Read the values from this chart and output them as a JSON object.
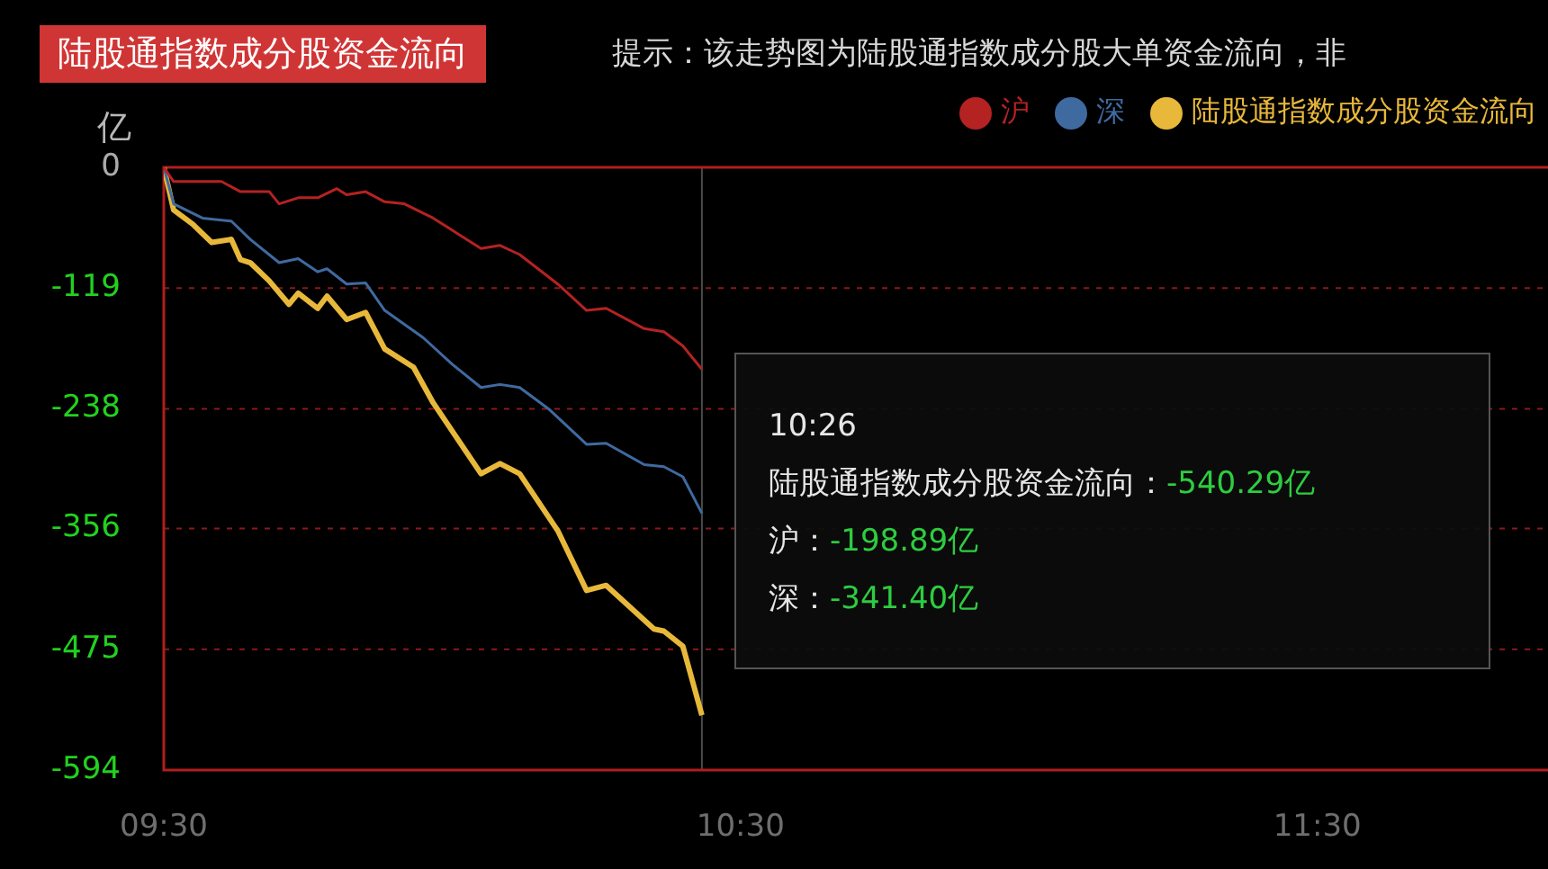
{
  "chart_data": {
    "type": "line",
    "title": "陆股通指数成分股资金流向",
    "subtitle": "提示：该走势图为陆股通指数成分股大单资金流向，非",
    "ylabel": "亿",
    "annotations": [
      "10:26",
      "陆股通指数成分股资金流向：-540.29亿",
      "沪：-198.89亿",
      "深：-341.40亿"
    ],
    "xlim": [
      9.5,
      11.9
    ],
    "xticks": [
      {
        "value": 9.5,
        "label": "09:30"
      },
      {
        "value": 10.5,
        "label": "10:30"
      },
      {
        "value": 11.5,
        "label": "11:30"
      }
    ],
    "ylim": [
      -594,
      0
    ],
    "yticks": [
      -594,
      -475,
      -356,
      -238,
      -119,
      0
    ],
    "grid": "y",
    "legend": "top right",
    "marker": "none",
    "line_style": "solid",
    "ref_lines": [
      {
        "axis": "x",
        "value": 10.433,
        "label": null,
        "color": "#4a4a4a"
      }
    ],
    "series": [
      {
        "name": "沪",
        "color": "#b52222",
        "x": [
          9.5,
          9.517,
          9.6,
          9.633,
          9.683,
          9.7,
          9.733,
          9.767,
          9.8,
          9.817,
          9.85,
          9.883,
          9.917,
          9.967,
          10.05,
          10.083,
          10.117,
          10.183,
          10.233,
          10.267,
          10.333,
          10.367,
          10.4,
          10.433
        ],
        "values": [
          0,
          -14,
          -14,
          -24,
          -24,
          -36,
          -30,
          -30,
          -21,
          -27,
          -24,
          -34,
          -36,
          -50,
          -80,
          -77,
          -86,
          -115,
          -141,
          -139,
          -159,
          -162,
          -176,
          -199
        ]
      },
      {
        "name": "深",
        "color": "#3f6aa0",
        "x": [
          9.5,
          9.517,
          9.567,
          9.617,
          9.65,
          9.7,
          9.733,
          9.767,
          9.783,
          9.817,
          9.85,
          9.883,
          9.95,
          10,
          10.05,
          10.083,
          10.117,
          10.167,
          10.233,
          10.267,
          10.333,
          10.367,
          10.4,
          10.433
        ],
        "values": [
          0,
          -36,
          -50,
          -53,
          -71,
          -94,
          -90,
          -103,
          -100,
          -115,
          -114,
          -141,
          -168,
          -194,
          -217,
          -214,
          -217,
          -238,
          -273,
          -272,
          -293,
          -295,
          -305,
          -341
        ]
      },
      {
        "name": "陆股通指数成分股资金流向",
        "color": "#e8b83a",
        "x": [
          9.5,
          9.517,
          9.55,
          9.583,
          9.617,
          9.633,
          9.65,
          9.683,
          9.717,
          9.733,
          9.767,
          9.783,
          9.817,
          9.85,
          9.883,
          9.933,
          9.967,
          10.05,
          10.083,
          10.117,
          10.183,
          10.233,
          10.267,
          10.35,
          10.367,
          10.4,
          10.433
        ],
        "values": [
          0,
          -42,
          -56,
          -74,
          -71,
          -91,
          -94,
          -112,
          -135,
          -124,
          -139,
          -127,
          -150,
          -143,
          -179,
          -197,
          -232,
          -302,
          -292,
          -302,
          -358,
          -417,
          -412,
          -455,
          -457,
          -472,
          -540
        ]
      }
    ]
  }
}
